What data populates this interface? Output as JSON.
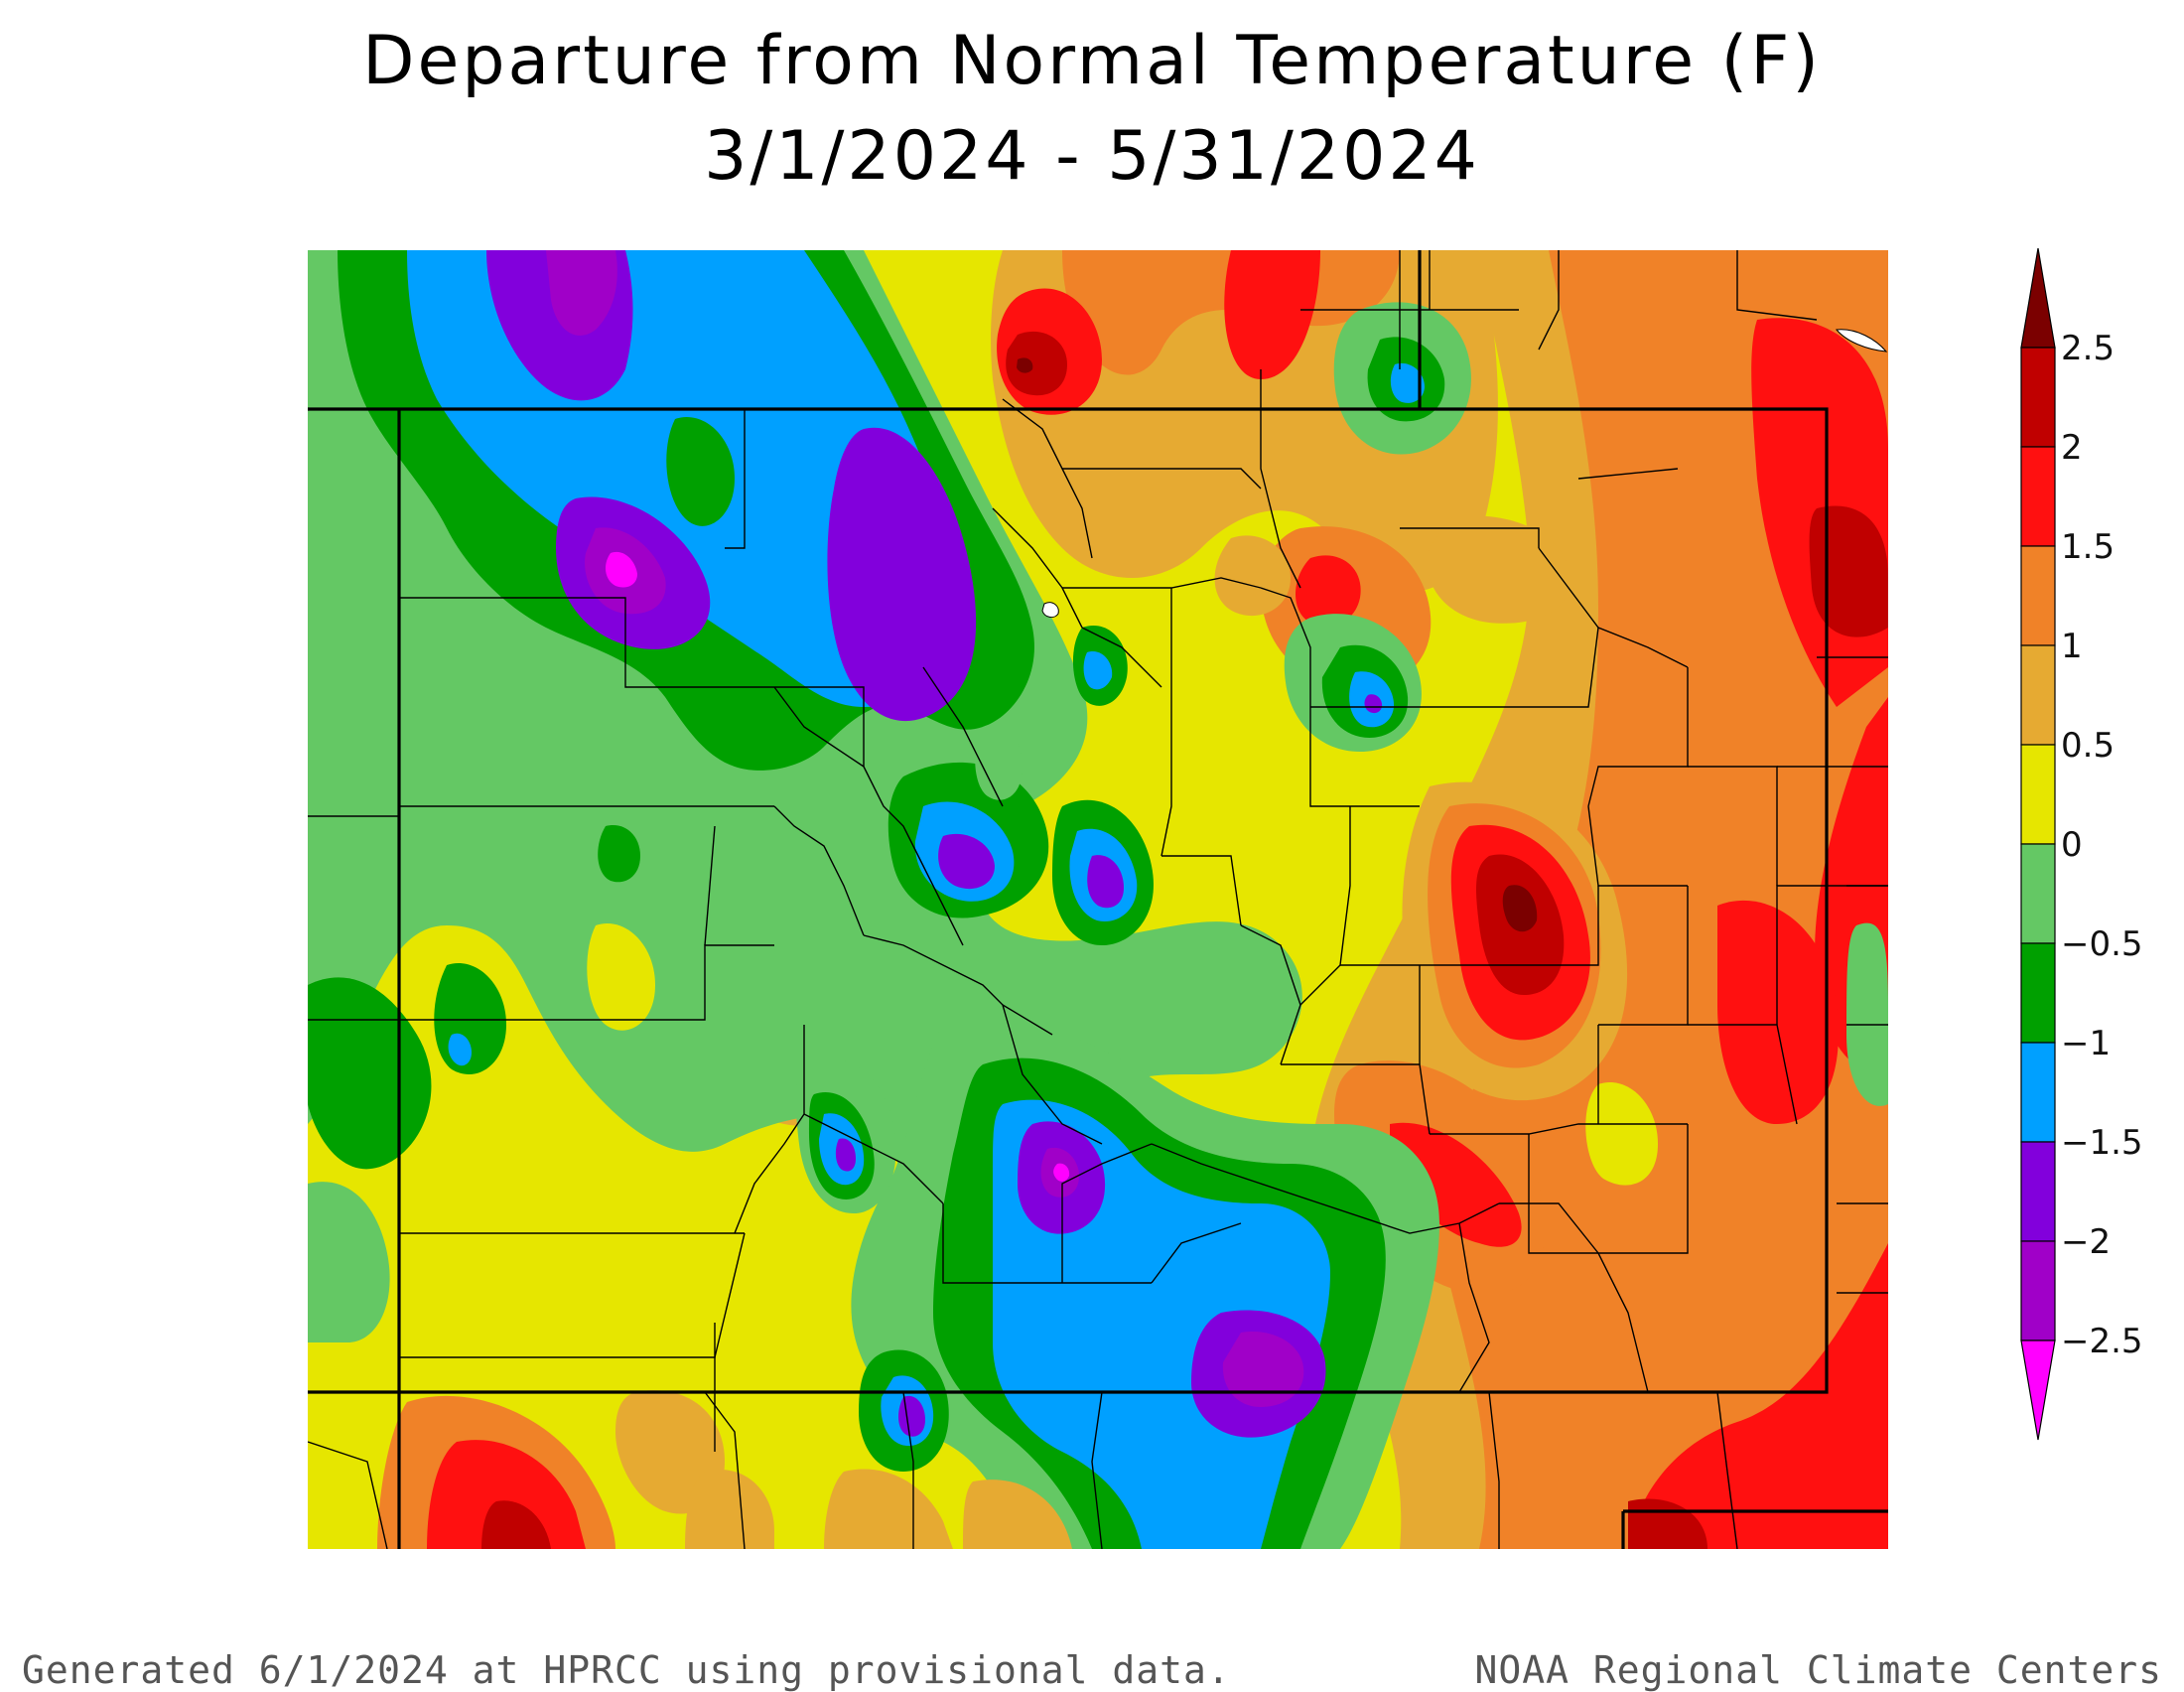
{
  "title": {
    "line1": "Departure from Normal Temperature (F)",
    "line2": "3/1/2024 - 5/31/2024"
  },
  "legend": {
    "labels": [
      "2.5",
      "2",
      "1.5",
      "1",
      "0.5",
      "0",
      "−0.5",
      "−1",
      "−1.5",
      "−2",
      "−2.5"
    ],
    "bins": [
      {
        "range": "> 2.5",
        "color": "#7b0000"
      },
      {
        "range": "2 to 2.5",
        "color": "#c00000"
      },
      {
        "range": "1.5 to 2",
        "color": "#ff1010"
      },
      {
        "range": "1 to 1.5",
        "color": "#f08228"
      },
      {
        "range": "0.5 to 1",
        "color": "#e6aa32"
      },
      {
        "range": "0 to 0.5",
        "color": "#e6e600"
      },
      {
        "range": "-0.5 to 0",
        "color": "#64c864"
      },
      {
        "range": "-1 to -0.5",
        "color": "#00a000"
      },
      {
        "range": "-1.5 to -1",
        "color": "#00a0ff"
      },
      {
        "range": "-2 to -1.5",
        "color": "#8200dc"
      },
      {
        "range": "-2.5 to -2",
        "color": "#a000c8"
      },
      {
        "range": "< -2.5",
        "color": "#ff00ff"
      }
    ]
  },
  "footer": {
    "left": "Generated 6/1/2024 at HPRCC using provisional data.",
    "right": "NOAA Regional Climate Centers"
  }
}
